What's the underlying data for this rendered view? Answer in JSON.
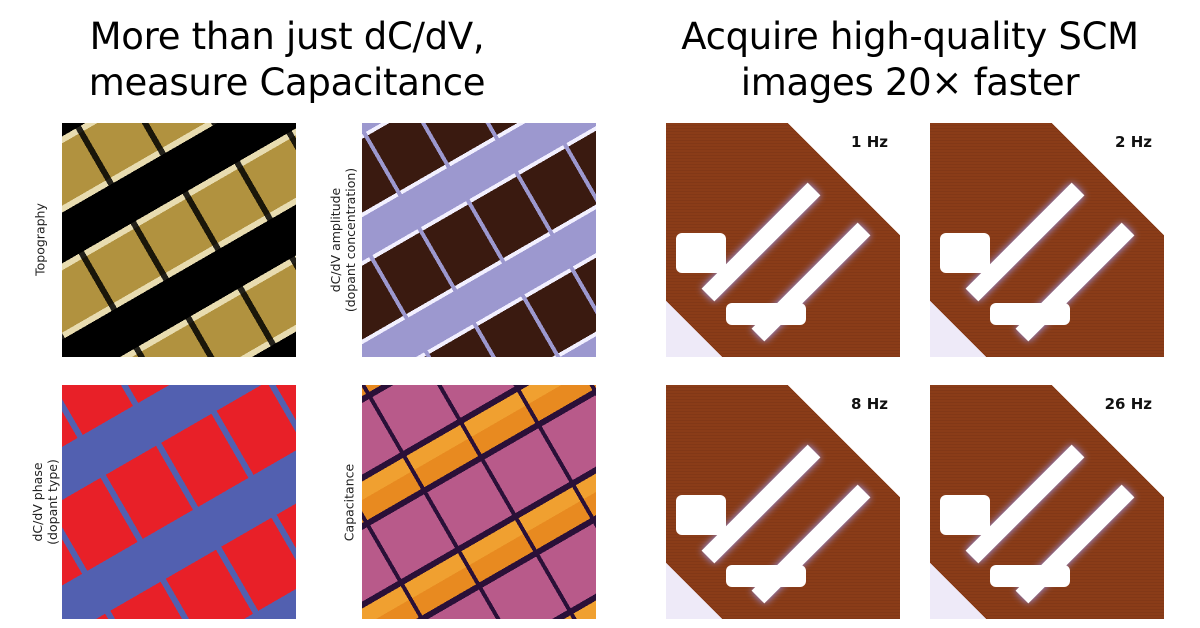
{
  "left_heading": {
    "line1": "More than just dC/dV,",
    "line2": "measure Capacitance"
  },
  "right_heading": {
    "line1": "Acquire high-quality SCM",
    "line2": "images 20× faster"
  },
  "left_panels": [
    {
      "label": "Topography",
      "label2": ""
    },
    {
      "label": "dC/dV amplitude",
      "label2": "(dopant concentration)"
    },
    {
      "label": "dC/dV phase",
      "label2": "(dopant type)"
    },
    {
      "label": "Capacitance",
      "label2": ""
    }
  ],
  "scm_panels": [
    {
      "rate": "1 Hz"
    },
    {
      "rate": "2 Hz"
    },
    {
      "rate": "8 Hz"
    },
    {
      "rate": "26 Hz"
    }
  ],
  "colors": {
    "phase_red": "#e82028",
    "phase_blue": "#5260b0",
    "topo_gold": "#b1923f",
    "scm_brown": "#8a3c18"
  }
}
